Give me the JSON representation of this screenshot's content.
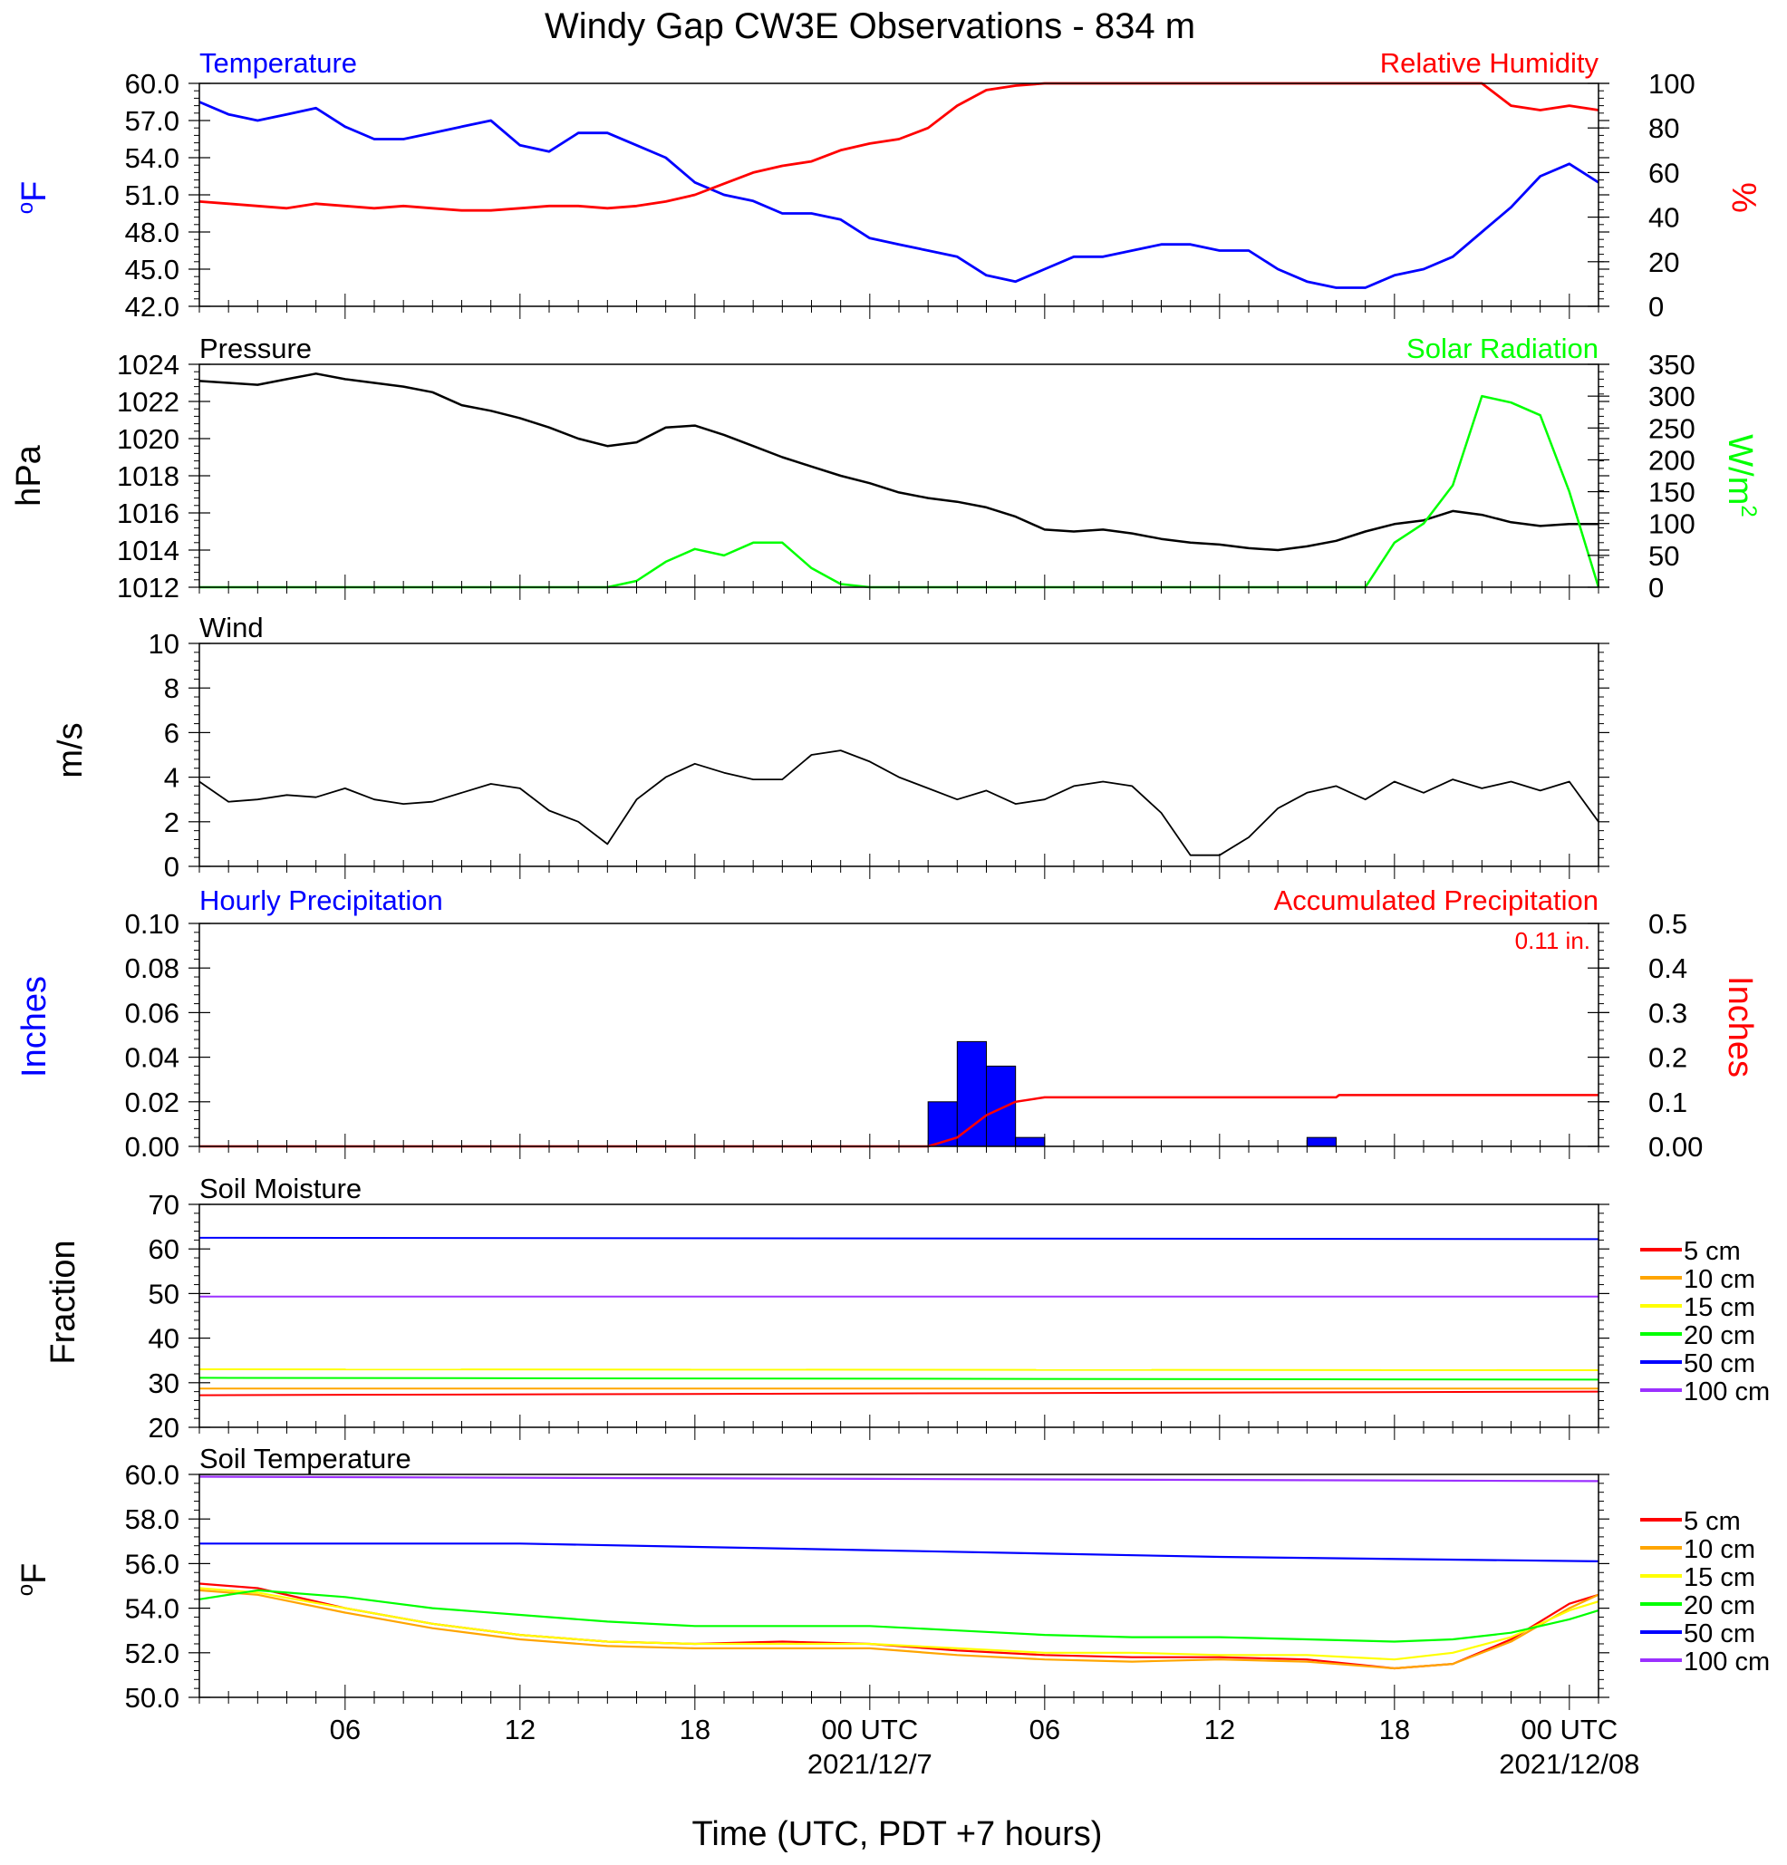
{
  "title": "Windy Gap CW3E Observations - 834 m",
  "xaxis": {
    "label": "Time (UTC, PDT +7 hours)",
    "ticks": [
      "06",
      "12",
      "18",
      "00 UTC",
      "06",
      "12",
      "18",
      "00 UTC"
    ],
    "tick_hours": [
      6,
      12,
      18,
      24,
      30,
      36,
      42,
      48
    ],
    "dates": [
      "2021/12/7",
      "2021/12/08"
    ],
    "date_hours": [
      24,
      48
    ],
    "range_hours": [
      1,
      49
    ]
  },
  "colors": {
    "blue": "#0000ff",
    "red": "#ff0000",
    "green": "#00ff00",
    "black": "#000000",
    "soil_5": "#ff0000",
    "soil_10": "#ffa500",
    "soil_15": "#ffff00",
    "soil_20": "#00ff00",
    "soil_50": "#0000ff",
    "soil_100": "#9b30ff"
  },
  "panels": {
    "temp_rh": {
      "left_title": "Temperature",
      "right_title": "Relative Humidity",
      "left_units": "oF",
      "right_units": "%",
      "left_ticks": [
        "60.0",
        "57.0",
        "54.0",
        "51.0",
        "48.0",
        "45.0",
        "42.0"
      ],
      "right_ticks": [
        "100",
        "80",
        "60",
        "40",
        "20",
        "0"
      ]
    },
    "pressure": {
      "left_title": "Pressure",
      "right_title": "Solar Radiation",
      "left_units": "hPa",
      "right_units": "W/m2",
      "left_ticks": [
        "1024",
        "1022",
        "1020",
        "1018",
        "1016",
        "1014",
        "1012"
      ],
      "right_ticks": [
        "350",
        "300",
        "250",
        "200",
        "150",
        "100",
        "50",
        "0"
      ]
    },
    "wind": {
      "left_title": "Wind",
      "left_units": "m/s",
      "left_ticks": [
        "10",
        "8",
        "6",
        "4",
        "2",
        "0"
      ]
    },
    "precip": {
      "left_title": "Hourly Precipitation",
      "right_title": "Accumulated Precipitation",
      "total_label": "0.11 in.",
      "left_units": "Inches",
      "right_units": "Inches",
      "left_ticks": [
        "0.10",
        "0.08",
        "0.06",
        "0.04",
        "0.02",
        "0.00"
      ],
      "right_ticks": [
        "0.5",
        "0.4",
        "0.3",
        "0.2",
        "0.1",
        "0.00"
      ]
    },
    "soil_moisture": {
      "left_title": "Soil Moisture",
      "left_units": "Fraction",
      "left_ticks": [
        "70",
        "60",
        "50",
        "40",
        "30",
        "20"
      ],
      "legend": [
        "5 cm",
        "10 cm",
        "15 cm",
        "20 cm",
        "50 cm",
        "100 cm"
      ]
    },
    "soil_temp": {
      "left_title": "Soil Temperature",
      "left_units": "oF",
      "left_ticks": [
        "60.0",
        "58.0",
        "56.0",
        "54.0",
        "52.0",
        "50.0"
      ],
      "legend": [
        "5 cm",
        "10 cm",
        "15 cm",
        "20 cm",
        "50 cm",
        "100 cm"
      ]
    }
  },
  "chart_data": [
    {
      "type": "line",
      "title": "Temperature / Relative Humidity",
      "x_units": "hours since 2021/12/06 00 UTC",
      "ylim_left": [
        42,
        60
      ],
      "ylim_right": [
        0,
        100
      ],
      "series": [
        {
          "name": "Temperature",
          "axis": "left",
          "color": "#0000ff",
          "x": [
            1,
            2,
            3,
            4,
            5,
            6,
            7,
            8,
            9,
            10,
            11,
            12,
            13,
            14,
            15,
            16,
            17,
            18,
            19,
            20,
            21,
            22,
            23,
            24,
            25,
            26,
            27,
            28,
            29,
            30,
            31,
            32,
            33,
            34,
            35,
            36,
            37,
            38,
            39,
            40,
            41,
            42,
            43,
            44,
            45,
            46,
            47,
            48,
            49
          ],
          "y": [
            58.5,
            57.5,
            57.0,
            57.5,
            58.0,
            56.5,
            55.5,
            55.5,
            56.0,
            56.5,
            57.0,
            55.0,
            54.5,
            56.0,
            56.0,
            55.0,
            54.0,
            52.0,
            51.0,
            50.5,
            49.5,
            49.5,
            49.0,
            47.5,
            47.0,
            46.5,
            46.0,
            44.5,
            44.0,
            45.0,
            46.0,
            46.0,
            46.5,
            47.0,
            47.0,
            46.5,
            46.5,
            45.0,
            44.0,
            43.5,
            43.5,
            44.5,
            45.0,
            46.0,
            48.0,
            50.0,
            52.5,
            53.5,
            52.0
          ]
        },
        {
          "name": "Relative Humidity",
          "axis": "right",
          "color": "#ff0000",
          "x": [
            1,
            2,
            3,
            4,
            5,
            6,
            7,
            8,
            9,
            10,
            11,
            12,
            13,
            14,
            15,
            16,
            17,
            18,
            19,
            20,
            21,
            22,
            23,
            24,
            25,
            26,
            27,
            28,
            29,
            30,
            31,
            32,
            33,
            34,
            35,
            36,
            37,
            38,
            39,
            40,
            41,
            42,
            43,
            44,
            45,
            46,
            47,
            48,
            49
          ],
          "y": [
            47,
            46,
            45,
            44,
            46,
            45,
            44,
            45,
            44,
            43,
            43,
            44,
            45,
            45,
            44,
            45,
            47,
            50,
            55,
            60,
            63,
            65,
            70,
            73,
            75,
            80,
            90,
            97,
            99,
            100,
            100,
            100,
            100,
            100,
            100,
            100,
            100,
            100,
            100,
            100,
            100,
            100,
            100,
            100,
            100,
            90,
            88,
            90,
            88
          ]
        }
      ]
    },
    {
      "type": "line",
      "title": "Pressure / Solar Radiation",
      "x_units": "hours since 2021/12/06 00 UTC",
      "ylim_left": [
        1012,
        1024
      ],
      "ylim_right": [
        0,
        350
      ],
      "series": [
        {
          "name": "Pressure",
          "axis": "left",
          "color": "#000000",
          "x": [
            1,
            2,
            3,
            4,
            5,
            6,
            7,
            8,
            9,
            10,
            11,
            12,
            13,
            14,
            15,
            16,
            17,
            18,
            19,
            20,
            21,
            22,
            23,
            24,
            25,
            26,
            27,
            28,
            29,
            30,
            31,
            32,
            33,
            34,
            35,
            36,
            37,
            38,
            39,
            40,
            41,
            42,
            43,
            44,
            45,
            46,
            47,
            48,
            49
          ],
          "y": [
            1023.1,
            1023.0,
            1022.9,
            1023.2,
            1023.5,
            1023.2,
            1023.0,
            1022.8,
            1022.5,
            1021.8,
            1021.5,
            1021.1,
            1020.6,
            1020.0,
            1019.6,
            1019.8,
            1020.6,
            1020.7,
            1020.2,
            1019.6,
            1019.0,
            1018.5,
            1018.0,
            1017.6,
            1017.1,
            1016.8,
            1016.6,
            1016.3,
            1015.8,
            1015.1,
            1015.0,
            1015.1,
            1014.9,
            1014.6,
            1014.4,
            1014.3,
            1014.1,
            1014.0,
            1014.2,
            1014.5,
            1015.0,
            1015.4,
            1015.6,
            1016.1,
            1015.9,
            1015.5,
            1015.3,
            1015.4,
            1015.4
          ]
        },
        {
          "name": "Solar Radiation",
          "axis": "right",
          "color": "#00ff00",
          "x": [
            1,
            14,
            15,
            16,
            17,
            18,
            19,
            20,
            21,
            22,
            23,
            24,
            25,
            30,
            40,
            41,
            42,
            43,
            44,
            45,
            46,
            47,
            48,
            49
          ],
          "y": [
            0,
            0,
            0,
            10,
            40,
            60,
            50,
            70,
            70,
            30,
            5,
            0,
            0,
            0,
            0,
            0,
            70,
            100,
            160,
            300,
            290,
            270,
            150,
            0
          ]
        }
      ]
    },
    {
      "type": "line",
      "title": "Wind",
      "x_units": "hours since 2021/12/06 00 UTC",
      "ylim": [
        0,
        10
      ],
      "series": [
        {
          "name": "Wind",
          "color": "#000000",
          "x": [
            1,
            2,
            3,
            4,
            5,
            6,
            7,
            8,
            9,
            10,
            11,
            12,
            13,
            14,
            15,
            16,
            17,
            18,
            19,
            20,
            21,
            22,
            23,
            24,
            25,
            26,
            27,
            28,
            29,
            30,
            31,
            32,
            33,
            34,
            35,
            36,
            37,
            38,
            39,
            40,
            41,
            42,
            43,
            44,
            45,
            46,
            47,
            48,
            49
          ],
          "y": [
            3.8,
            2.9,
            3.0,
            3.2,
            3.1,
            3.5,
            3.0,
            2.8,
            2.9,
            3.3,
            3.7,
            3.5,
            2.5,
            2.0,
            1.0,
            3.0,
            4.0,
            4.6,
            4.2,
            3.9,
            3.9,
            5.0,
            5.2,
            4.7,
            4.0,
            3.5,
            3.0,
            3.4,
            2.8,
            3.0,
            3.6,
            3.8,
            3.6,
            2.4,
            0.5,
            0.5,
            1.3,
            2.6,
            3.3,
            3.6,
            3.0,
            3.8,
            3.3,
            3.9,
            3.5,
            3.8,
            3.4,
            3.8,
            2.0
          ]
        }
      ]
    },
    {
      "type": "bar",
      "title": "Hourly / Accumulated Precipitation",
      "x_units": "hours since 2021/12/06 00 UTC",
      "ylim_left": [
        0,
        0.1
      ],
      "ylim_right": [
        0,
        0.5
      ],
      "series": [
        {
          "name": "Hourly Precipitation",
          "axis": "left",
          "color": "#0000ff",
          "x": [
            26.5,
            27.5,
            28.5,
            29.5,
            39.5
          ],
          "values": [
            0.02,
            0.047,
            0.036,
            0.004,
            0.004
          ]
        },
        {
          "name": "Accumulated Precipitation",
          "axis": "right",
          "color": "#ff0000",
          "x": [
            1,
            26,
            27,
            28,
            29,
            30,
            40,
            40.1,
            49
          ],
          "y": [
            0,
            0,
            0.02,
            0.07,
            0.1,
            0.11,
            0.11,
            0.115,
            0.115
          ]
        }
      ]
    },
    {
      "type": "line",
      "title": "Soil Moisture",
      "x_units": "hours since 2021/12/06 00 UTC",
      "ylim": [
        20,
        70
      ],
      "series": [
        {
          "name": "5 cm",
          "color": "#ff0000",
          "x": [
            1,
            49
          ],
          "y": [
            27.2,
            28.0
          ]
        },
        {
          "name": "10 cm",
          "color": "#ffa500",
          "x": [
            1,
            49
          ],
          "y": [
            28.7,
            28.7
          ]
        },
        {
          "name": "15 cm",
          "color": "#ffff00",
          "x": [
            1,
            49
          ],
          "y": [
            33.0,
            32.8
          ]
        },
        {
          "name": "20 cm",
          "color": "#00ff00",
          "x": [
            1,
            49
          ],
          "y": [
            31.1,
            30.7
          ]
        },
        {
          "name": "50 cm",
          "color": "#0000ff",
          "x": [
            1,
            49
          ],
          "y": [
            62.5,
            62.2
          ]
        },
        {
          "name": "100 cm",
          "color": "#9b30ff",
          "x": [
            1,
            49
          ],
          "y": [
            49.3,
            49.3
          ]
        }
      ]
    },
    {
      "type": "line",
      "title": "Soil Temperature",
      "x_units": "hours since 2021/12/06 00 UTC",
      "ylim": [
        50,
        60
      ],
      "series": [
        {
          "name": "5 cm",
          "color": "#ff0000",
          "x": [
            1,
            3,
            6,
            9,
            12,
            15,
            18,
            21,
            24,
            27,
            30,
            33,
            36,
            39,
            42,
            44,
            46,
            48,
            49
          ],
          "y": [
            55.1,
            54.9,
            54.0,
            53.3,
            52.8,
            52.5,
            52.4,
            52.5,
            52.4,
            52.1,
            51.9,
            51.8,
            51.8,
            51.7,
            51.3,
            51.5,
            52.6,
            54.2,
            54.6
          ]
        },
        {
          "name": "10 cm",
          "color": "#ffa500",
          "x": [
            1,
            3,
            6,
            9,
            12,
            15,
            18,
            21,
            24,
            27,
            30,
            33,
            36,
            39,
            42,
            44,
            46,
            48,
            49
          ],
          "y": [
            54.8,
            54.6,
            53.8,
            53.1,
            52.6,
            52.3,
            52.2,
            52.2,
            52.2,
            51.9,
            51.7,
            51.6,
            51.7,
            51.6,
            51.3,
            51.5,
            52.5,
            54.0,
            54.6
          ]
        },
        {
          "name": "15 cm",
          "color": "#ffff00",
          "x": [
            1,
            3,
            6,
            9,
            12,
            15,
            18,
            21,
            24,
            27,
            30,
            33,
            36,
            39,
            42,
            44,
            46,
            48,
            49
          ],
          "y": [
            54.9,
            54.7,
            54.0,
            53.3,
            52.8,
            52.5,
            52.4,
            52.4,
            52.4,
            52.2,
            52.0,
            52.0,
            51.9,
            51.9,
            51.7,
            52.0,
            52.7,
            53.9,
            54.3
          ]
        },
        {
          "name": "20 cm",
          "color": "#00ff00",
          "x": [
            1,
            3,
            6,
            9,
            12,
            15,
            18,
            21,
            24,
            27,
            30,
            33,
            36,
            39,
            42,
            44,
            46,
            48,
            49
          ],
          "y": [
            54.4,
            54.8,
            54.5,
            54.0,
            53.7,
            53.4,
            53.2,
            53.2,
            53.2,
            53.0,
            52.8,
            52.7,
            52.7,
            52.6,
            52.5,
            52.6,
            52.9,
            53.5,
            53.9
          ]
        },
        {
          "name": "50 cm",
          "color": "#0000ff",
          "x": [
            1,
            12,
            24,
            36,
            49
          ],
          "y": [
            56.9,
            56.9,
            56.6,
            56.3,
            56.1
          ]
        },
        {
          "name": "100 cm",
          "color": "#9b30ff",
          "x": [
            1,
            24,
            49
          ],
          "y": [
            59.9,
            59.8,
            59.7
          ]
        }
      ]
    }
  ]
}
